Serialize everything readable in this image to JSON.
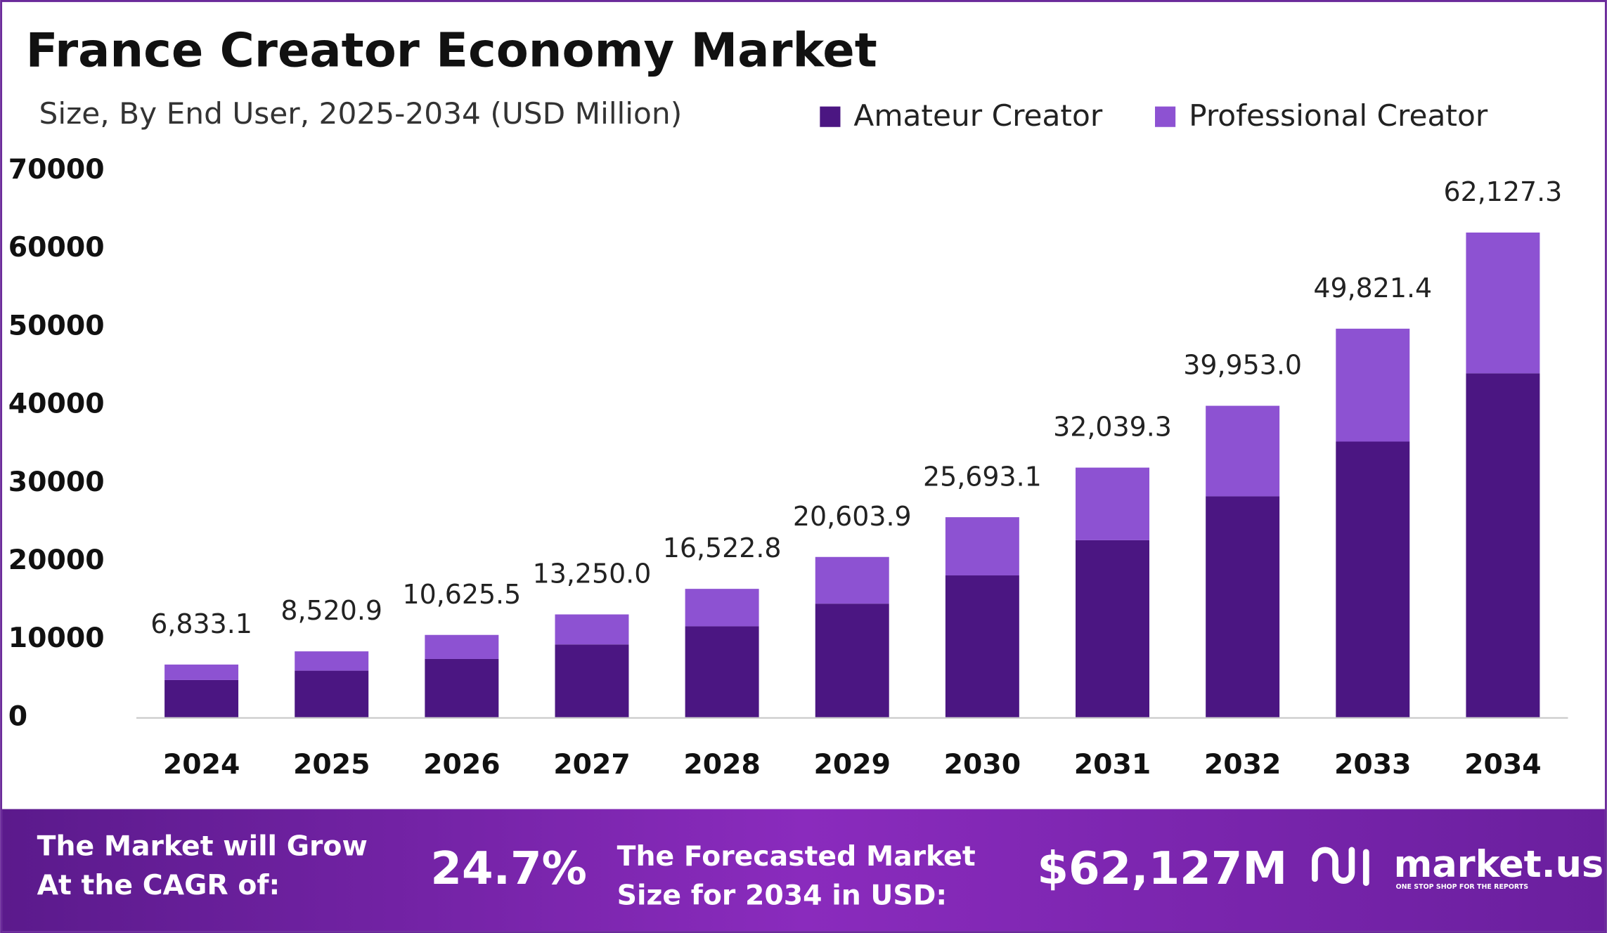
{
  "chart_data": {
    "type": "stacked_bar",
    "title": "France Creator Economy Market",
    "subtitle": "Size, By End User, 2025-2034 (USD Million)",
    "categories": [
      "2024",
      "2025",
      "2026",
      "2027",
      "2028",
      "2029",
      "2030",
      "2031",
      "2032",
      "2033",
      "2034"
    ],
    "series": [
      {
        "name": "Amateur Creator",
        "color": "#4b1682",
        "values": [
          4851.5,
          6049.8,
          7544.1,
          9407.5,
          11731.2,
          14628.8,
          18242.1,
          22747.9,
          28366.6,
          35373.2,
          44110.4
        ]
      },
      {
        "name": "Professional Creator",
        "color": "#8d52d2",
        "values": [
          1981.6,
          2471.1,
          3081.4,
          3842.5,
          4791.6,
          5975.1,
          7451.0,
          9291.4,
          11586.4,
          14448.2,
          18016.9
        ]
      }
    ],
    "totals": {
      "values": [
        6833.1,
        8520.9,
        10625.5,
        13250.0,
        16522.8,
        20603.9,
        25693.1,
        32039.3,
        39953.0,
        49821.4,
        62127.3
      ],
      "value_labels": [
        "6,833.1",
        "8,520.9",
        "10,625.5",
        "13,250.0",
        "16,522.8",
        "20,603.9",
        "25,693.1",
        "32,039.3",
        "39,953.0",
        "49,821.4",
        "62,127.3"
      ]
    },
    "ylim": [
      0,
      70000
    ],
    "yticks": [
      0,
      10000,
      20000,
      30000,
      40000,
      50000,
      60000,
      70000
    ],
    "grid": false,
    "legend": "top-right"
  },
  "footer": {
    "cagr_label": [
      "The Market will Grow",
      "At the CAGR of:"
    ],
    "cagr": "24.7%",
    "forecast_label": [
      "The Forecasted Market",
      "Size for 2034 in USD:"
    ],
    "forecast": "$62,127M",
    "brand": "market.us",
    "tagline": "ONE STOP SHOP FOR THE REPORTS"
  }
}
